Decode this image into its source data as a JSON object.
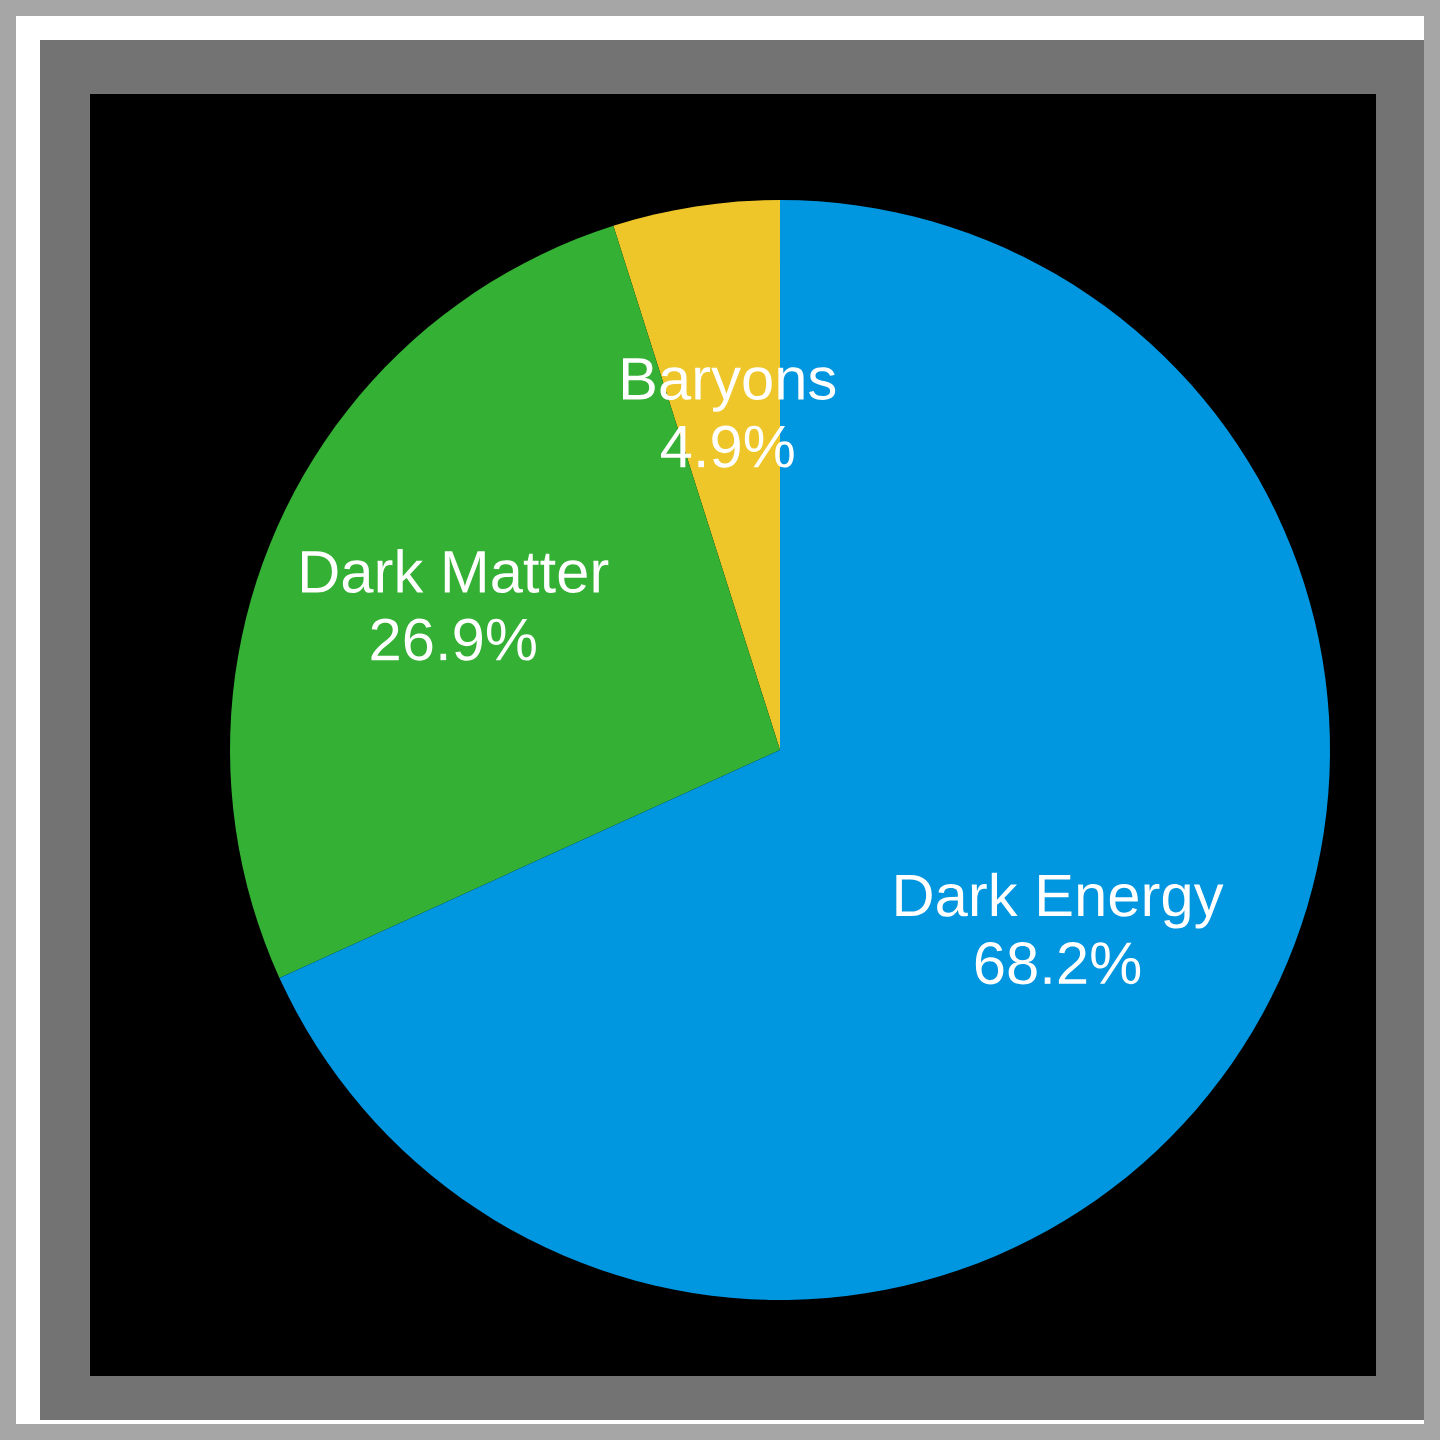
{
  "chart_data": {
    "type": "pie",
    "categories": [
      "Dark Energy",
      "Dark Matter",
      "Baryons"
    ],
    "values": [
      68.2,
      26.9,
      4.9
    ],
    "value_labels": [
      "68.2%",
      "26.9%",
      "4.9%"
    ],
    "colors": [
      "#0096e0",
      "#34b034",
      "#eec62a"
    ]
  }
}
